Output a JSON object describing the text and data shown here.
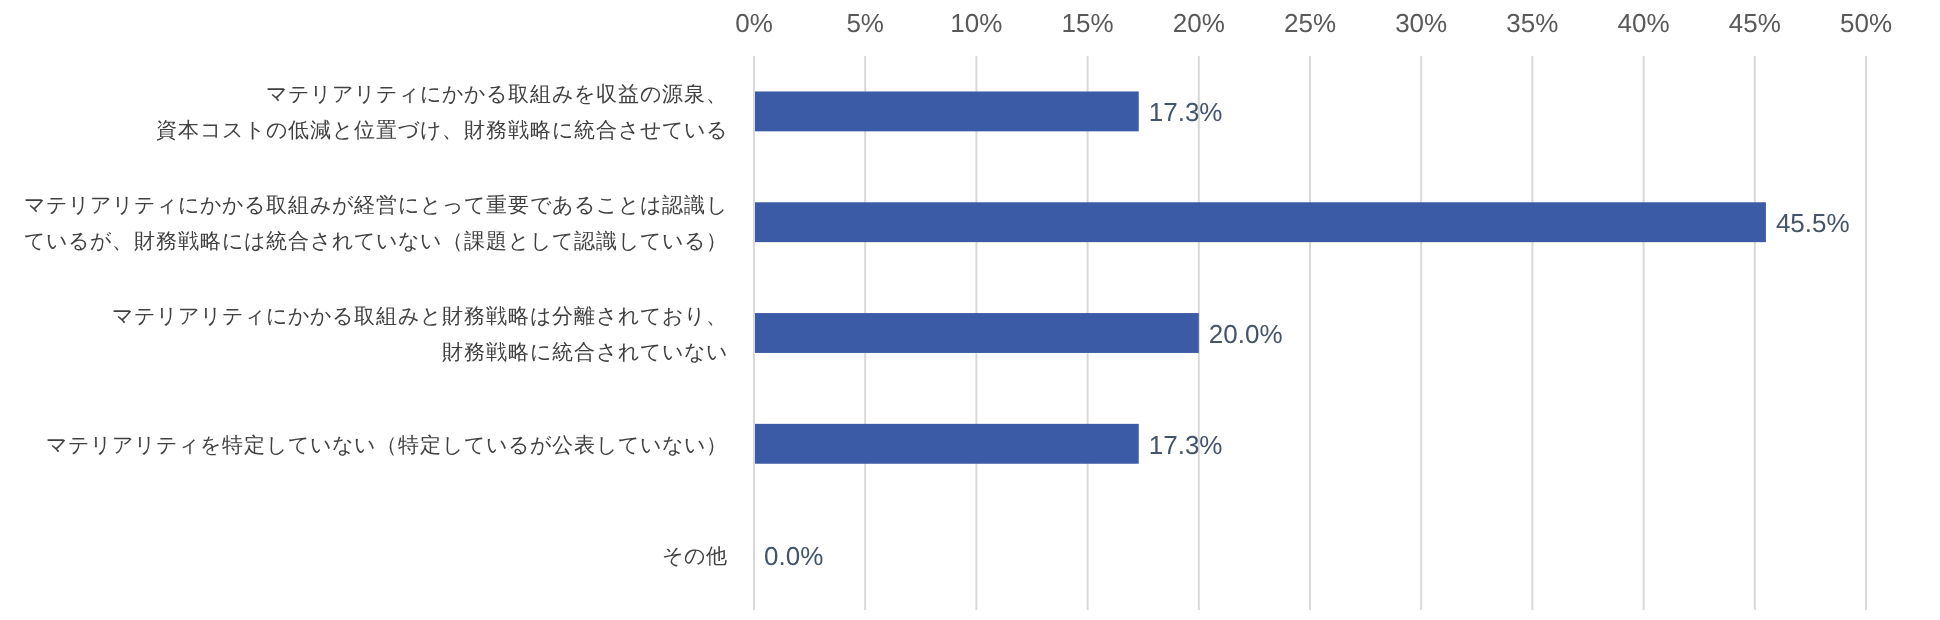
{
  "chart_data": {
    "type": "bar",
    "orientation": "horizontal",
    "categories": [
      "マテリアリティにかかる取組みを収益の源泉、資本コストの低減と位置づけ、財務戦略に統合させている",
      "マテリアリティにかかる取組みが経営にとって重要であることは認識しているが、財務戦略には統合されていない（課題として認識している）",
      "マテリアリティにかかる取組みと財務戦略は分離されており、財務戦略に統合されていない",
      "マテリアリティを特定していない（特定しているが公表していない）",
      "その他"
    ],
    "values": [
      17.3,
      45.5,
      20.0,
      17.3,
      0.0
    ],
    "value_labels": [
      "17.3%",
      "45.5%",
      "20.0%",
      "17.3%",
      "0.0%"
    ],
    "color": "#3c5ba6",
    "xlim": [
      0,
      50
    ],
    "xticks": [
      {
        "value": 0,
        "label": "0%"
      },
      {
        "value": 5,
        "label": "5%"
      },
      {
        "value": 10,
        "label": "10%"
      },
      {
        "value": 15,
        "label": "15%"
      },
      {
        "value": 20,
        "label": "20%"
      },
      {
        "value": 25,
        "label": "25%"
      },
      {
        "value": 30,
        "label": "30%"
      },
      {
        "value": 35,
        "label": "35%"
      },
      {
        "value": 40,
        "label": "40%"
      },
      {
        "value": 45,
        "label": "45%"
      },
      {
        "value": 50,
        "label": "50%"
      }
    ],
    "grid": "x"
  }
}
